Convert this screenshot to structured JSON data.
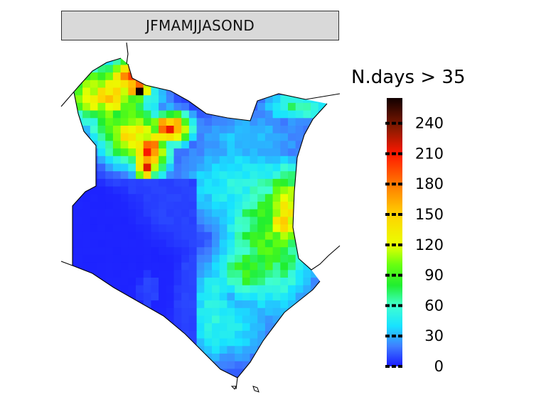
{
  "panel": {
    "title": "JFMAMJJASOND"
  },
  "legend": {
    "title": "N.days > 35",
    "min": 0,
    "max": 265,
    "ticks": [
      0,
      30,
      60,
      90,
      120,
      150,
      180,
      210,
      240
    ],
    "colors": {
      "0": "#1a1aff",
      "20": "#3f7fff",
      "40": "#18e3ff",
      "60": "#40ffd0",
      "80": "#20ee30",
      "100": "#66ff10",
      "120": "#eaff00",
      "150": "#ffd200",
      "180": "#ff7800",
      "210": "#ff1800",
      "235": "#8a1a00",
      "265": "#110000"
    }
  },
  "map_data": {
    "region": "Kenya",
    "variable": "N.days > 35",
    "period": "JFMAMJJASOND",
    "grid_cell_deg": 0.25
  }
}
